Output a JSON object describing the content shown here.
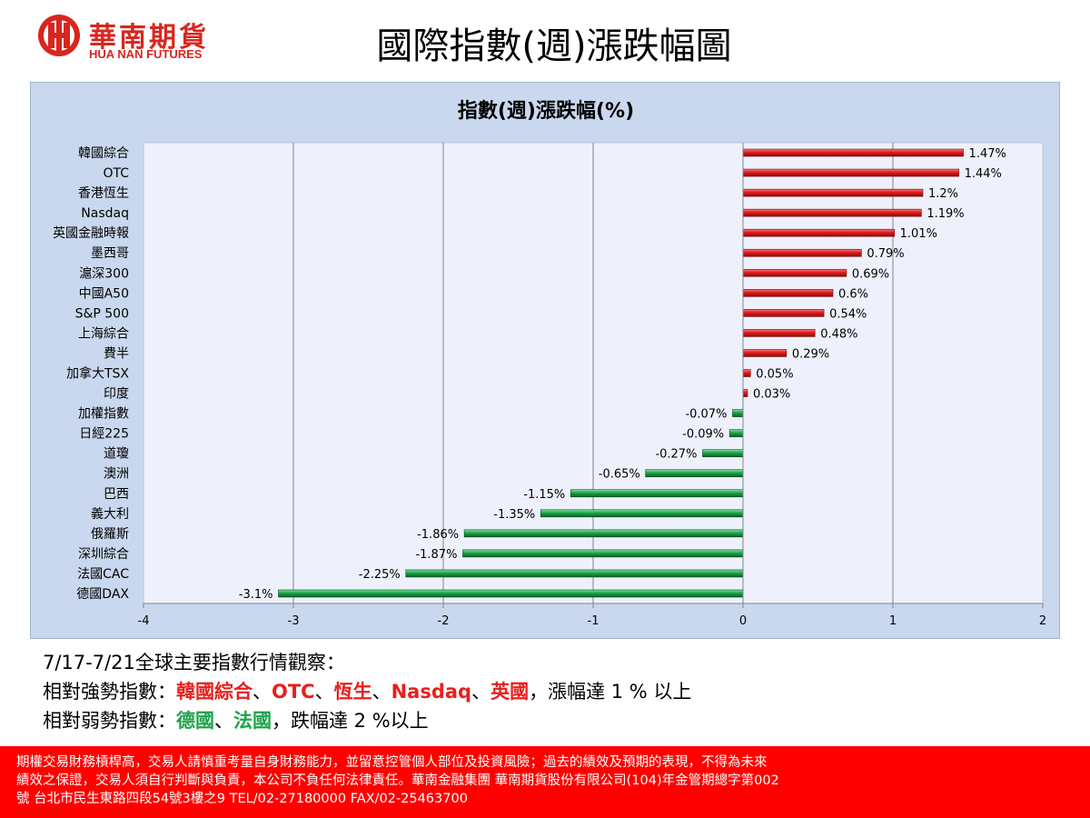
{
  "brand": {
    "name_cn": "華南期貨",
    "name_en": "HUA NAN FUTURES",
    "color": "#d7261f"
  },
  "page_title": "國際指數(週)漲跌幅圖",
  "chart_data": {
    "type": "bar",
    "orientation": "horizontal",
    "title": "指數(週)漲跌幅(%)",
    "categories": [
      "韓國綜合",
      "OTC",
      "香港恆生",
      "Nasdaq",
      "英國金融時報",
      "墨西哥",
      "滬深300",
      "中國A50",
      "S&P 500",
      "上海綜合",
      "費半",
      "加拿大TSX",
      "印度",
      "加權指數",
      "日經225",
      "道瓊",
      "澳洲",
      "巴西",
      "義大利",
      "俄羅斯",
      "深圳綜合",
      "法國CAC",
      "德國DAX"
    ],
    "values": [
      1.47,
      1.44,
      1.2,
      1.19,
      1.01,
      0.79,
      0.69,
      0.6,
      0.54,
      0.48,
      0.29,
      0.05,
      0.03,
      -0.07,
      -0.09,
      -0.27,
      -0.65,
      -1.15,
      -1.35,
      -1.86,
      -1.87,
      -2.25,
      -3.1
    ],
    "data_labels": [
      "1.47%",
      "1.44%",
      "1.2%",
      "1.19%",
      "1.01%",
      "0.79%",
      "0.69%",
      "0.6%",
      "0.54%",
      "0.48%",
      "0.29%",
      "0.05%",
      "0.03%",
      "-0.07%",
      "-0.09%",
      "-0.27%",
      "-0.65%",
      "-1.15%",
      "-1.35%",
      "-1.86%",
      "-1.87%",
      "-2.25%",
      "-3.1%"
    ],
    "xlim": [
      -4,
      2
    ],
    "x_ticks": [
      "-4",
      "-3",
      "-2",
      "-1",
      "0",
      "1",
      "2"
    ],
    "grid": "vertical",
    "colors": {
      "positive": "#e01b1b",
      "negative": "#1fa34a",
      "plot_bg": "#eef1fb",
      "frame_bg": "#c9d8ee"
    }
  },
  "observation": {
    "line1": "7/17-7/21全球主要指數行情觀察：",
    "line2_prefix": "相對強勢指數：",
    "strong": [
      "韓國綜合",
      "OTC",
      "恆生",
      "Nasdaq",
      "英國"
    ],
    "sep": "、",
    "line2_suffix": "，漲幅達 1 % 以上",
    "line3_prefix": "相對弱勢指數：",
    "weak": [
      "德國",
      "法國"
    ],
    "line3_suffix": "，跌幅達 2 %以上"
  },
  "disclaimer": {
    "line1": "期權交易財務槓桿高，交易人請慎重考量自身財務能力，並留意控管個人部位及投資風險；過去的績效及預期的表現，不得為未來",
    "line2": "績效之保證，交易人須自行判斷與負責，本公司不負任何法律責任。華南金融集團 華南期貨股份有限公司(104)年金管期總字第002",
    "line3": "號  台北市民生東路四段54號3樓之9  TEL/02-27180000  FAX/02-25463700"
  }
}
